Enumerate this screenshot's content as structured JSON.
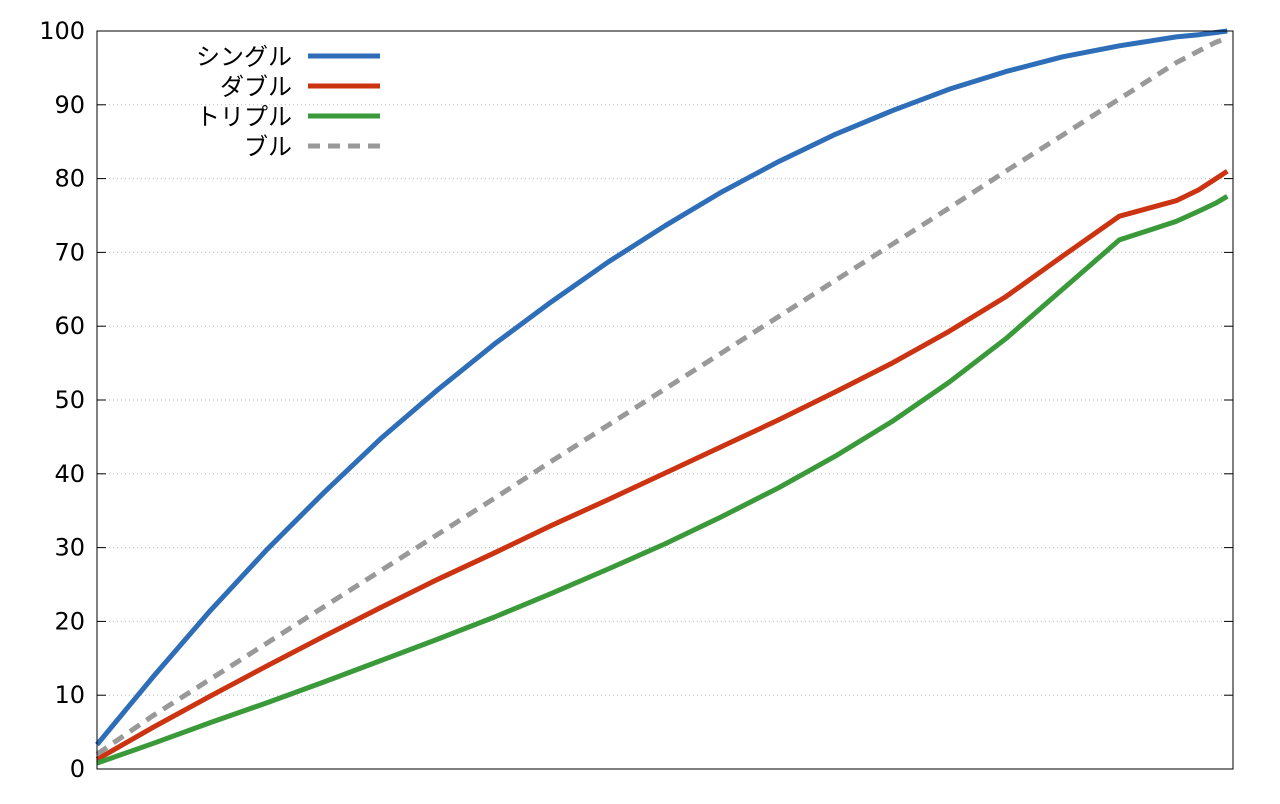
{
  "chart_data": {
    "type": "line",
    "title": "",
    "xlabel": "",
    "ylabel": "",
    "ylim": [
      0,
      100
    ],
    "xlim": [
      0,
      100
    ],
    "yticks": [
      0,
      10,
      20,
      30,
      40,
      50,
      60,
      70,
      80,
      90,
      100
    ],
    "grid": "horizontal dotted",
    "legend_position": "top-left",
    "x": [
      0,
      5,
      10,
      15,
      20,
      25,
      30,
      35,
      40,
      45,
      50,
      55,
      60,
      65,
      70,
      75,
      80,
      85,
      90,
      95,
      97,
      98.5,
      99.5
    ],
    "series": [
      {
        "name": "シングル",
        "color": "#2e6eb8",
        "dash": "solid",
        "values": [
          3.3,
          12.6,
          21.5,
          29.8,
          37.5,
          44.8,
          51.4,
          57.6,
          63.3,
          68.7,
          73.6,
          78.2,
          82.3,
          86.0,
          89.2,
          92.1,
          94.5,
          96.5,
          98.0,
          99.2,
          99.5,
          99.8,
          100.0
        ]
      },
      {
        "name": "ダブル",
        "color": "#cc3311",
        "dash": "solid",
        "values": [
          1.3,
          5.7,
          9.9,
          14.0,
          18.0,
          21.9,
          25.7,
          29.3,
          33.0,
          36.5,
          40.1,
          43.7,
          47.3,
          51.1,
          55.0,
          59.3,
          64.0,
          69.5,
          74.9,
          77.0,
          78.5,
          80.0,
          81.0
        ]
      },
      {
        "name": "トリプル",
        "color": "#3a9a3a",
        "dash": "solid",
        "values": [
          0.8,
          3.5,
          6.3,
          9.0,
          11.8,
          14.7,
          17.6,
          20.6,
          23.8,
          27.1,
          30.5,
          34.2,
          38.1,
          42.4,
          47.1,
          52.4,
          58.3,
          65.0,
          71.7,
          74.2,
          75.6,
          76.7,
          77.6
        ]
      },
      {
        "name": "ブル",
        "color": "#999999",
        "dash": "dashed",
        "values": [
          2.0,
          7.3,
          12.2,
          17.1,
          22.0,
          26.9,
          31.8,
          36.7,
          41.7,
          46.6,
          51.5,
          56.4,
          61.3,
          66.2,
          71.1,
          76.0,
          81.0,
          85.9,
          90.8,
          95.7,
          97.3,
          98.5,
          99.0
        ]
      }
    ]
  }
}
